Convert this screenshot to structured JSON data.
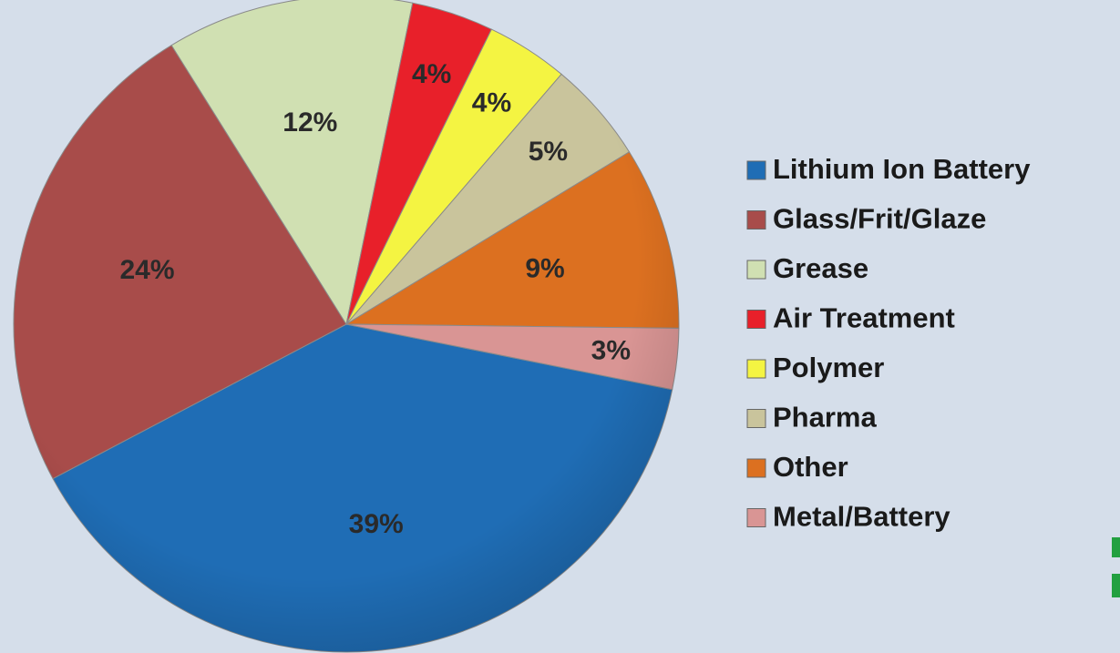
{
  "chart_data": {
    "type": "pie",
    "categories": [
      "Lithium Ion Battery",
      "Glass/Frit/Glaze",
      "Grease",
      "Air Treatment",
      "Polymer",
      "Pharma",
      "Other",
      "Metal/Battery"
    ],
    "values": [
      39,
      24,
      12,
      4,
      4,
      5,
      9,
      3
    ],
    "value_labels": [
      "39%",
      "24%",
      "12%",
      "4%",
      "4%",
      "5%",
      "9%",
      "3%"
    ],
    "colors": [
      "#1f6db5",
      "#a84c4a",
      "#d0e0b2",
      "#e8202a",
      "#f4f442",
      "#c9c49c",
      "#dc7020",
      "#d99594"
    ],
    "legend": "right"
  }
}
